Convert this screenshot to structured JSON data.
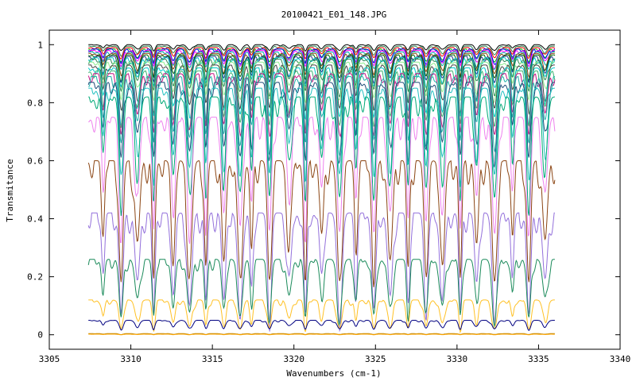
{
  "chart_data": {
    "type": "line",
    "title": "20100421_E01_148.JPG",
    "xlabel": "Wavenumbers (cm-1)",
    "ylabel": "Transmitance",
    "xlim": [
      3305,
      3340
    ],
    "ylim": [
      -0.05,
      1.05
    ],
    "x_ticks": [
      "3305",
      "3310",
      "3315",
      "3320",
      "3325",
      "3330",
      "3335",
      "3340"
    ],
    "y_ticks": [
      "0",
      "0.2",
      "0.4",
      "0.6",
      "0.8",
      "1"
    ],
    "grid": false,
    "legend": "none",
    "x_range_of_data": [
      3307.4,
      3336.0
    ],
    "absorption_line_positions": [
      3308.3,
      3309.4,
      3310.4,
      3311.4,
      3312.6,
      3313.6,
      3314.6,
      3315.7,
      3316.7,
      3317.4,
      3318.5,
      3319.7,
      3320.7,
      3321.7,
      3322.8,
      3323.8,
      3324.9,
      3325.9,
      3327.0,
      3328.1,
      3329.1,
      3330.2,
      3331.2,
      3332.3,
      3333.4,
      3334.4,
      3335.4
    ],
    "series": [
      {
        "color": "#000000",
        "baseline": 1.0,
        "depth": 0.02
      },
      {
        "color": "#2e8b57",
        "baseline": 0.995,
        "depth": 0.03
      },
      {
        "color": "#ff0000",
        "baseline": 0.99,
        "depth": 0.035
      },
      {
        "color": "#00c000",
        "baseline": 0.985,
        "depth": 0.045
      },
      {
        "color": "#0000ff",
        "baseline": 0.985,
        "depth": 0.05
      },
      {
        "color": "#ff00ff",
        "baseline": 0.98,
        "depth": 0.055
      },
      {
        "color": "#00aaaa",
        "baseline": 0.975,
        "depth": 0.06
      },
      {
        "color": "#8b4513",
        "baseline": 0.97,
        "depth": 0.07
      },
      {
        "color": "#006400",
        "baseline": 0.965,
        "depth": 0.08
      },
      {
        "color": "#1e3a8a",
        "baseline": 0.96,
        "depth": 0.09
      },
      {
        "color": "#00cccc",
        "baseline": 0.955,
        "depth": 0.1
      },
      {
        "color": "#2e8b57",
        "baseline": 0.95,
        "depth": 0.11
      },
      {
        "color": "#90ee90",
        "baseline": 0.94,
        "depth": 0.13
      },
      {
        "color": "#444444",
        "baseline": 0.93,
        "depth": 0.15
      },
      {
        "color": "#00cccc",
        "baseline": 0.92,
        "depth": 0.17
      },
      {
        "color": "#3cb371",
        "baseline": 0.91,
        "depth": 0.19
      },
      {
        "color": "#c71585",
        "baseline": 0.9,
        "depth": 0.21
      },
      {
        "color": "#20b2aa",
        "baseline": 0.89,
        "depth": 0.23
      },
      {
        "color": "#1f4e79",
        "baseline": 0.87,
        "depth": 0.26
      },
      {
        "color": "#20c0c0",
        "baseline": 0.85,
        "depth": 0.3
      },
      {
        "color": "#00aa77",
        "baseline": 0.82,
        "depth": 0.35
      },
      {
        "color": "#ee82ee",
        "baseline": 0.75,
        "depth": 0.4
      },
      {
        "color": "#8b4513",
        "baseline": 0.6,
        "depth": 0.42
      },
      {
        "color": "#9370db",
        "baseline": 0.42,
        "depth": 0.35
      },
      {
        "color": "#1a8a5a",
        "baseline": 0.26,
        "depth": 0.2
      },
      {
        "color": "#ffc125",
        "baseline": 0.12,
        "depth": 0.1
      },
      {
        "color": "#000080",
        "baseline": 0.05,
        "depth": 0.03
      },
      {
        "color": "#b8860b",
        "baseline": 0.004,
        "depth": 0.003
      },
      {
        "color": "#ffa500",
        "baseline": 0.002,
        "depth": 0.002
      }
    ]
  }
}
